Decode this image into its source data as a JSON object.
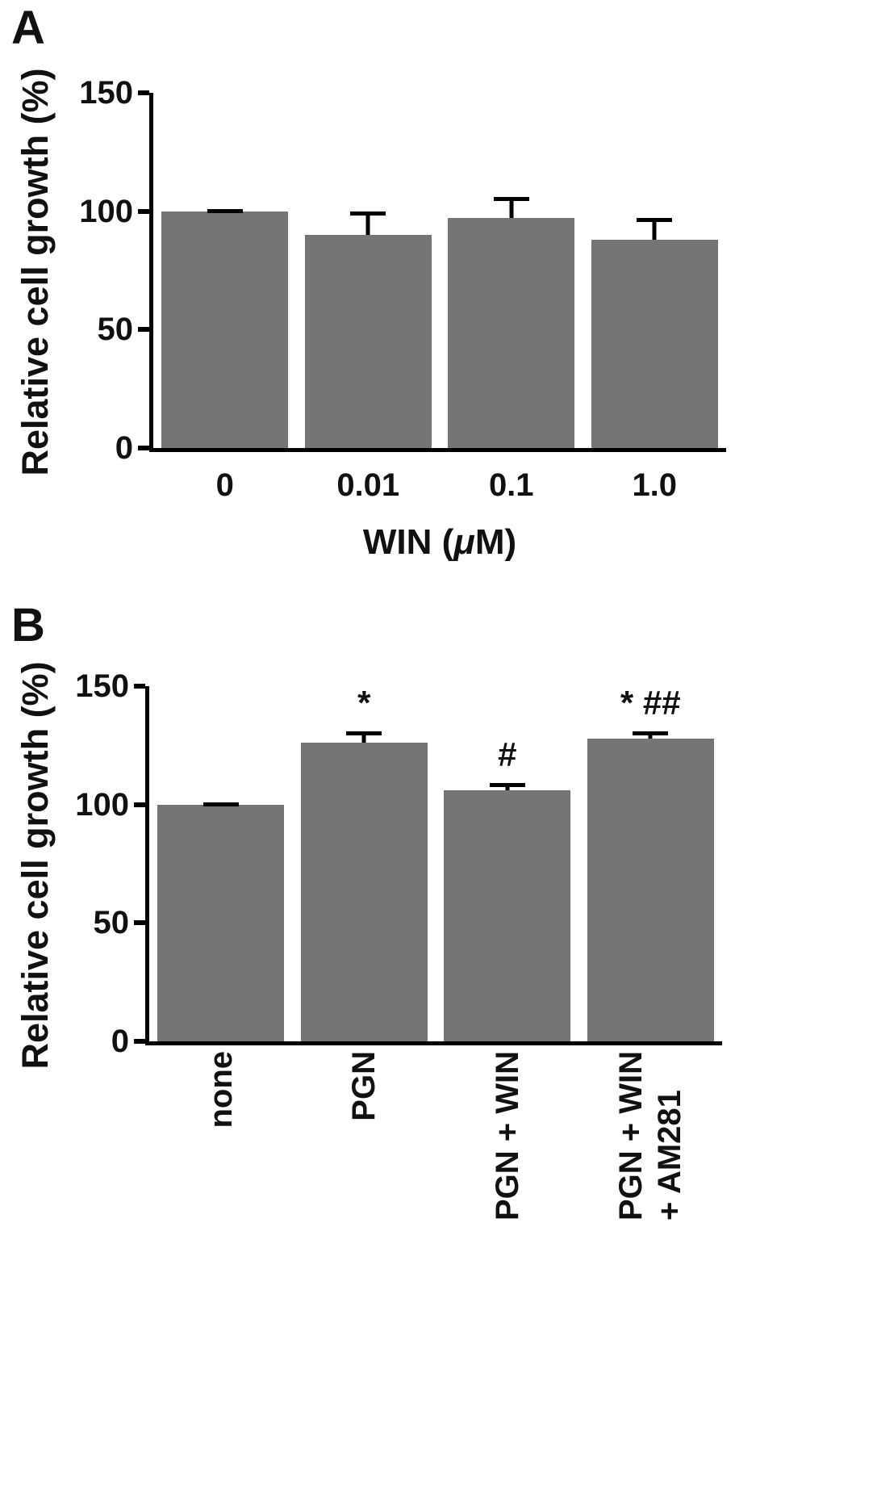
{
  "panels": [
    {
      "label": "A",
      "ylabel": "Relative cell growth (%)",
      "xlabel_parts": {
        "pre": "WIN (",
        "mu": "μ",
        "post": "M)"
      }
    },
    {
      "label": "B",
      "ylabel": "Relative cell growth (%)"
    }
  ],
  "chart_data": [
    {
      "type": "bar",
      "panel": "A",
      "title": "",
      "xlabel": "WIN (μM)",
      "ylabel": "Relative cell growth (%)",
      "ylim": [
        0,
        150
      ],
      "yticks": [
        0,
        50,
        100,
        150
      ],
      "categories": [
        "0",
        "0.01",
        "0.1",
        "1.0"
      ],
      "values": [
        100,
        90,
        97,
        88
      ],
      "errors": [
        1,
        10,
        9,
        9
      ],
      "annotations": [
        "",
        "",
        "",
        ""
      ],
      "bar_color": "#757575",
      "xtick_rotation": 0,
      "grid": false,
      "legend": false
    },
    {
      "type": "bar",
      "panel": "B",
      "title": "",
      "xlabel": "",
      "ylabel": "Relative cell growth (%)",
      "ylim": [
        0,
        150
      ],
      "yticks": [
        0,
        50,
        100,
        150
      ],
      "categories": [
        "none",
        "PGN",
        "PGN + WIN",
        "PGN + WIN\n+ AM281"
      ],
      "values": [
        100,
        126,
        106,
        128
      ],
      "errors": [
        1,
        5,
        3,
        3
      ],
      "annotations": [
        "",
        "*",
        "#",
        "* ##"
      ],
      "bar_color": "#757575",
      "xtick_rotation": 90,
      "grid": false,
      "legend": false
    }
  ]
}
